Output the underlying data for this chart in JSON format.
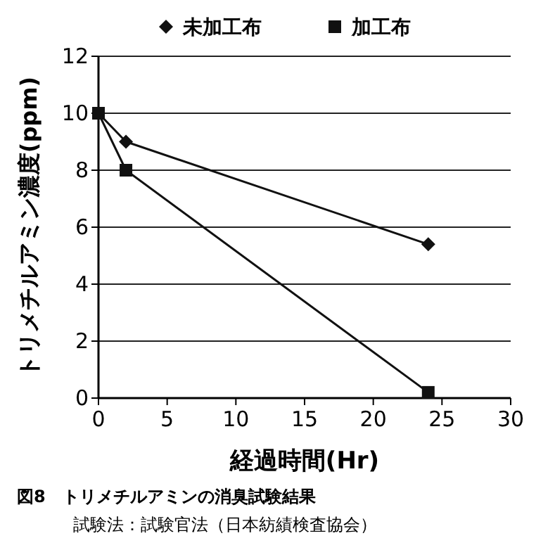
{
  "chart_data": {
    "type": "line",
    "xlabel": "経過時間(Hr)",
    "ylabel": "トリメチルアミン濃度(ppm)",
    "xlim": [
      0,
      30
    ],
    "xticks": [
      0,
      5,
      10,
      15,
      20,
      25,
      30
    ],
    "ylim": [
      0,
      12
    ],
    "yticks": [
      0,
      2,
      4,
      6,
      8,
      10,
      12
    ],
    "grid": "y",
    "legend": "top",
    "series": [
      {
        "name": "未加工布",
        "color": "#111111",
        "marker": "diamond",
        "x": [
          0,
          2,
          24
        ],
        "values": [
          10,
          9,
          5.4
        ]
      },
      {
        "name": "加工布",
        "color": "#111111",
        "marker": "square",
        "x": [
          0,
          2,
          24
        ],
        "values": [
          10,
          8,
          0.2
        ]
      }
    ],
    "annotations": [
      "図8　トリメチルアミンの消臭試験結果",
      "試験法：試験官法（日本紡績検査協会）"
    ]
  }
}
